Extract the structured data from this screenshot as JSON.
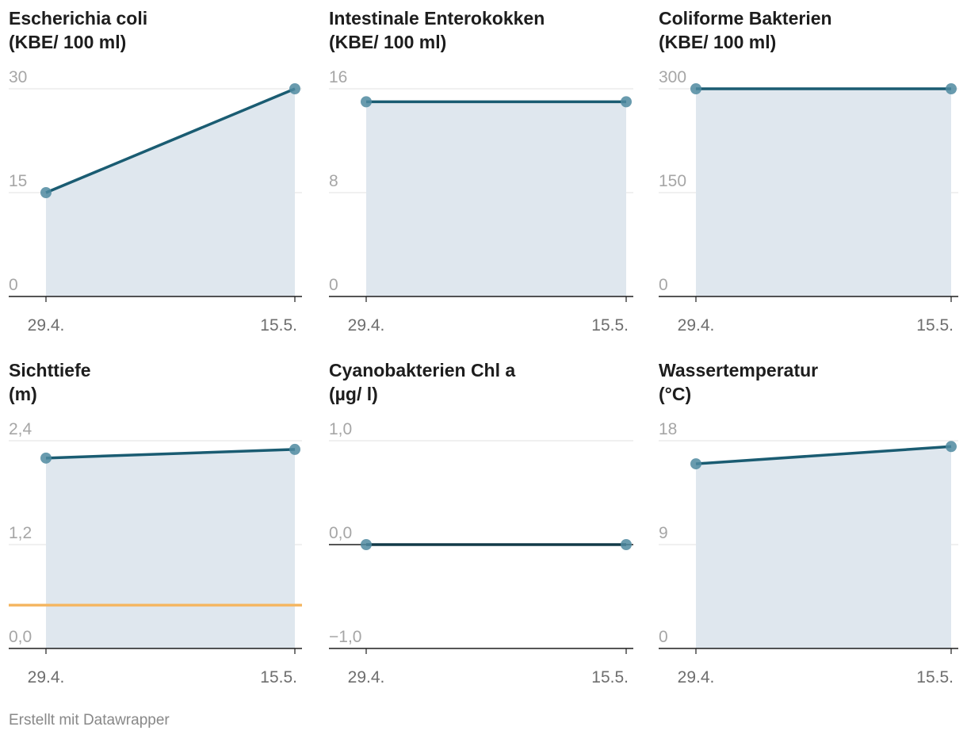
{
  "colors": {
    "line": "#1a5c72",
    "area": "#dfe7ee",
    "dot": "#4f8aa0",
    "grid": "#e2e2e2",
    "tick_text": "#a6a6a6",
    "date_text": "#6e6e6e",
    "threshold": "#f5b763",
    "axis": "#1d1d1d",
    "zero_line": "#1d1d1d"
  },
  "footer": "Erstellt mit Datawrapper",
  "chart_data": [
    {
      "type": "area",
      "title_line1": "Escherichia coli",
      "title_line2": "(KBE/ 100 ml)",
      "categories": [
        "29.4.",
        "15.5."
      ],
      "values": [
        15,
        30
      ],
      "ylim": [
        0,
        30
      ],
      "yticks": [
        "0",
        "15",
        "30"
      ],
      "ytick_values": [
        0,
        15,
        30
      ]
    },
    {
      "type": "area",
      "title_line1": "Intestinale Enterokokken",
      "title_line2": "(KBE/ 100 ml)",
      "categories": [
        "29.4.",
        "15.5."
      ],
      "values": [
        15,
        15
      ],
      "ylim": [
        0,
        16
      ],
      "yticks": [
        "0",
        "8",
        "16"
      ],
      "ytick_values": [
        0,
        8,
        16
      ]
    },
    {
      "type": "area",
      "title_line1": "Coliforme Bakterien",
      "title_line2": "(KBE/ 100 ml)",
      "categories": [
        "29.4.",
        "15.5."
      ],
      "values": [
        300,
        300
      ],
      "ylim": [
        0,
        300
      ],
      "yticks": [
        "0",
        "150",
        "300"
      ],
      "ytick_values": [
        0,
        150,
        300
      ]
    },
    {
      "type": "area",
      "title_line1": "Sichttiefe",
      "title_line2": "(m)",
      "categories": [
        "29.4.",
        "15.5."
      ],
      "values": [
        2.2,
        2.3
      ],
      "ylim": [
        0,
        2.4
      ],
      "yticks": [
        "0,0",
        "1,2",
        "2,4"
      ],
      "ytick_values": [
        0,
        1.2,
        2.4
      ],
      "reference_line": 0.5
    },
    {
      "type": "line",
      "title_line1": "Cyanobakterien Chl a",
      "title_line2": "(µg/ l)",
      "categories": [
        "29.4.",
        "15.5."
      ],
      "values": [
        0,
        0
      ],
      "ylim": [
        -1,
        1
      ],
      "yticks": [
        "−1,0",
        "0,0",
        "1,0"
      ],
      "ytick_values": [
        -1,
        0,
        1
      ]
    },
    {
      "type": "area",
      "title_line1": "Wassertemperatur",
      "title_line2": "(°C)",
      "categories": [
        "29.4.",
        "15.5."
      ],
      "values": [
        16,
        17.5
      ],
      "ylim": [
        0,
        18
      ],
      "yticks": [
        "0",
        "9",
        "18"
      ],
      "ytick_values": [
        0,
        9,
        18
      ]
    }
  ]
}
